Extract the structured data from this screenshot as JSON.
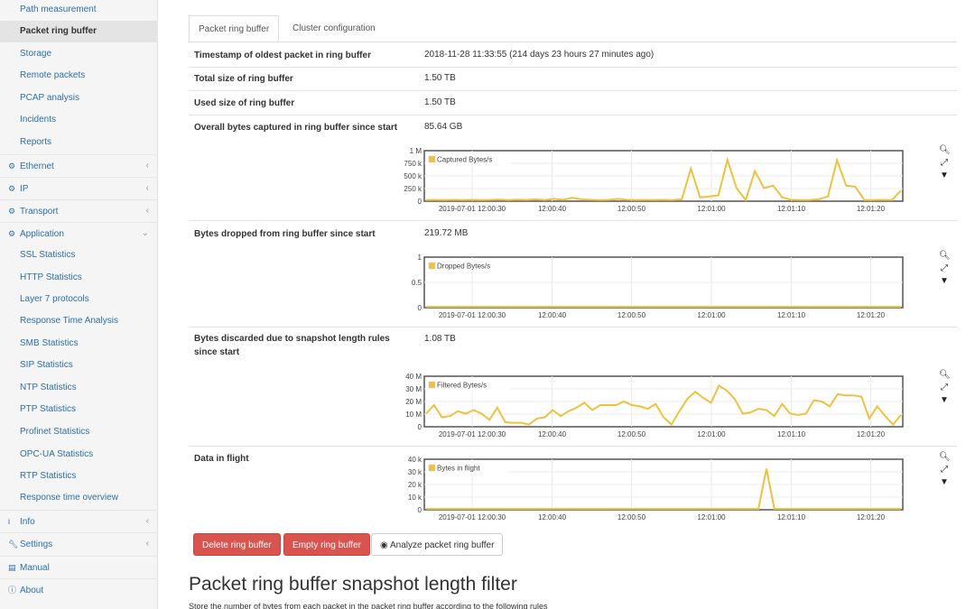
{
  "sidebar": {
    "items": [
      {
        "label": "Path measurement",
        "top": 1,
        "type": "sub"
      },
      {
        "label": "Packet ring buffer",
        "type": "sub",
        "active": true
      },
      {
        "label": "Storage",
        "type": "sub"
      },
      {
        "label": "Remote packets",
        "type": "sub"
      },
      {
        "label": "PCAP analysis",
        "type": "sub"
      },
      {
        "label": "Incidents",
        "type": "sub"
      },
      {
        "label": "Reports",
        "type": "sub"
      },
      {
        "label": "Ethernet",
        "type": "top",
        "icon": "gear-icon",
        "chevron": "‹"
      },
      {
        "label": "IP",
        "type": "top",
        "icon": "gear-icon",
        "chevron": "‹"
      },
      {
        "label": "Transport",
        "type": "top",
        "icon": "gear-icon",
        "chevron": "‹"
      },
      {
        "label": "Application",
        "type": "top",
        "icon": "gear-icon",
        "chevron": "⌄"
      },
      {
        "label": "SSL Statistics",
        "type": "sub"
      },
      {
        "label": "HTTP Statistics",
        "type": "sub"
      },
      {
        "label": "Layer 7 protocols",
        "type": "sub"
      },
      {
        "label": "Response Time Analysis",
        "type": "sub"
      },
      {
        "label": "SMB Statistics",
        "type": "sub"
      },
      {
        "label": "SIP Statistics",
        "type": "sub"
      },
      {
        "label": "NTP Statistics",
        "type": "sub"
      },
      {
        "label": "PTP Statistics",
        "type": "sub"
      },
      {
        "label": "Profinet Statistics",
        "type": "sub"
      },
      {
        "label": "OPC-UA Statistics",
        "type": "sub"
      },
      {
        "label": "RTP Statistics",
        "type": "sub"
      },
      {
        "label": "Response time overview",
        "type": "sub"
      },
      {
        "label": "Info",
        "type": "top",
        "icon": "info-icon",
        "chevron": "‹"
      },
      {
        "label": "Settings",
        "type": "top",
        "icon": "wrench-icon",
        "chevron": "‹"
      },
      {
        "label": "Manual",
        "type": "top",
        "icon": "book-icon"
      },
      {
        "label": "About",
        "type": "top",
        "icon": "info-circle-icon"
      }
    ]
  },
  "tabs": [
    {
      "label": "Packet ring buffer",
      "active": true
    },
    {
      "label": "Cluster configuration",
      "active": false
    }
  ],
  "rows": {
    "oldest": {
      "label": "Timestamp of oldest packet in ring buffer",
      "value": "2018-11-28 11:33:55 (214 days 23 hours 27 minutes ago)"
    },
    "total": {
      "label": "Total size of ring buffer",
      "value": "1.50 TB"
    },
    "used": {
      "label": "Used size of ring buffer",
      "value": "1.50 TB"
    },
    "captured": {
      "label": "Overall bytes captured in ring buffer since start",
      "value": "85.64 GB"
    },
    "dropped": {
      "label": "Bytes dropped from ring buffer since start",
      "value": "219.72 MB"
    },
    "discarded": {
      "label": "Bytes discarded due to snapshot length rules since start",
      "value": "1.08 TB"
    },
    "inflight": {
      "label": "Data in flight",
      "value": ""
    }
  },
  "buttons": {
    "delete": "Delete ring buffer",
    "empty": "Empty ring buffer",
    "analyze": "Analyze packet ring buffer"
  },
  "section": {
    "title": "Packet ring buffer snapshot length filter",
    "description": "Store the number of bytes from each packet in the packet ring buffer according to the following rules"
  },
  "colors": {
    "line": "#edc240",
    "legend_box": "#edc240",
    "primary_link": "#2d6fa8",
    "danger": "#d9534f"
  },
  "chart_tools": [
    "search-icon",
    "compress-icon",
    "caret-down-icon"
  ],
  "chart_data": [
    {
      "type": "line",
      "name": "captured-chart",
      "x_tick_labels": [
        "2019-07-01 12:00:30",
        "12:00:40",
        "12:00:50",
        "12:01:00",
        "12:01:10",
        "12:01:20"
      ],
      "y_tick_labels": [
        "1 M",
        "750 k",
        "500 k",
        "250 k",
        "0"
      ],
      "ylim": [
        0,
        1000000
      ],
      "legend": "Captured Bytes/s",
      "series": [
        {
          "name": "Captured Bytes/s",
          "values": [
            5000,
            8000,
            6000,
            10000,
            5000,
            10000,
            4000,
            8000,
            15000,
            5000,
            12000,
            8000,
            20000,
            5000,
            30000,
            10000,
            50000,
            20000,
            10000,
            5000,
            8000,
            30000,
            10000,
            5000,
            8000,
            5000,
            10000,
            5000,
            20000,
            650000,
            60000,
            80000,
            100000,
            830000,
            250000,
            5000,
            600000,
            250000,
            300000,
            60000,
            10000,
            5000,
            5000,
            20000,
            80000,
            820000,
            300000,
            280000,
            5000,
            5000,
            10000,
            5000,
            200000
          ]
        }
      ]
    },
    {
      "type": "line",
      "name": "dropped-chart",
      "x_tick_labels": [
        "2019-07-01 12:00:30",
        "12:00:40",
        "12:00:50",
        "12:01:00",
        "12:01:10",
        "12:01:20"
      ],
      "y_tick_labels": [
        "1",
        "0.5",
        "0"
      ],
      "ylim": [
        0,
        1
      ],
      "legend": "Dropped Bytes/s",
      "series": [
        {
          "name": "Dropped Bytes/s",
          "values": [
            0,
            0,
            0,
            0,
            0,
            0,
            0,
            0,
            0,
            0,
            0,
            0,
            0,
            0,
            0,
            0,
            0,
            0,
            0,
            0,
            0,
            0,
            0,
            0,
            0,
            0,
            0,
            0,
            0,
            0,
            0,
            0,
            0,
            0,
            0,
            0,
            0,
            0,
            0,
            0,
            0,
            0,
            0,
            0,
            0,
            0,
            0,
            0,
            0,
            0,
            0,
            0,
            0
          ]
        }
      ]
    },
    {
      "type": "line",
      "name": "filtered-chart",
      "x_tick_labels": [
        "2019-07-01 12:00:30",
        "12:00:40",
        "12:00:50",
        "12:01:00",
        "12:01:10",
        "12:01:20"
      ],
      "y_tick_labels": [
        "40 M",
        "30 M",
        "20 M",
        "10 M",
        "0"
      ],
      "ylim": [
        0,
        40000000
      ],
      "legend": "Filtered Bytes/s",
      "series": [
        {
          "name": "Filtered Bytes/s",
          "values": [
            10000000,
            17000000,
            7000000,
            8000000,
            12000000,
            10000000,
            13000000,
            10000000,
            5000000,
            15000000,
            3000000,
            2500000,
            2500000,
            1000000,
            6000000,
            7000000,
            13000000,
            8000000,
            12000000,
            15000000,
            19000000,
            13000000,
            17000000,
            17000000,
            17000000,
            20000000,
            17000000,
            16000000,
            14000000,
            18000000,
            7000000,
            1000000,
            12000000,
            22000000,
            28000000,
            23000000,
            19000000,
            33000000,
            29000000,
            22000000,
            10000000,
            11000000,
            14000000,
            13000000,
            8000000,
            18000000,
            10000000,
            9000000,
            10000000,
            21000000,
            20000000,
            16000000,
            26000000,
            25000000,
            25000000,
            24000000,
            6000000,
            16000000,
            8000000,
            1000000,
            9000000
          ]
        }
      ]
    },
    {
      "type": "line",
      "name": "inflight-chart",
      "x_tick_labels": [
        "2019-07-01 12:00:30",
        "12:00:40",
        "12:00:50",
        "12:01:00",
        "12:01:10",
        "12:01:20"
      ],
      "y_tick_labels": [
        "40 k",
        "30 k",
        "20 k",
        "10 k",
        "0"
      ],
      "ylim": [
        0,
        40000
      ],
      "legend": "Bytes in flight",
      "series": [
        {
          "name": "Bytes in flight",
          "values": [
            0,
            0,
            0,
            0,
            0,
            0,
            0,
            0,
            0,
            0,
            0,
            0,
            0,
            0,
            0,
            0,
            0,
            0,
            0,
            0,
            0,
            0,
            0,
            0,
            0,
            0,
            0,
            0,
            0,
            0,
            0,
            0,
            0,
            0,
            0,
            0,
            0,
            0,
            0,
            0,
            0,
            0,
            0,
            33000,
            0,
            0,
            0,
            0,
            0,
            0,
            0,
            0,
            0,
            0,
            0,
            0,
            0,
            0,
            0,
            0,
            0
          ]
        }
      ]
    }
  ]
}
